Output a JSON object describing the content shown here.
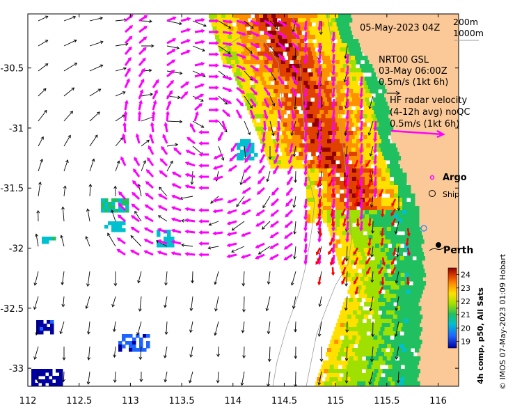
{
  "map": {
    "date_label": "05-May-2023 04Z",
    "contours": [
      "200m",
      "1000m"
    ],
    "model_lines": [
      "NRT00 GSL",
      "03-May 06:00Z",
      "0.5m/s (1kt 6h)"
    ],
    "radar_lines": [
      "HF radar velocity",
      "(4-12h avg) noQC",
      "0.5m/s (1kt 6h)"
    ],
    "legend": {
      "argo": "Argo",
      "ship": "Ship"
    },
    "places": [
      {
        "name": "Perth",
        "lon": 115.86,
        "lat": -31.95
      }
    ],
    "colorbar": {
      "title": "4h comp, p50, All Sats",
      "ticks": [
        19,
        20,
        21,
        22,
        23,
        24
      ],
      "range": [
        18.5,
        24.5
      ]
    },
    "credit": "© IMOS 07-May-2023 01:09 Hobart",
    "lon_ticks": [
      "112",
      "112.5",
      "113",
      "113.5",
      "114",
      "114.5",
      "115",
      "115.5",
      "116"
    ],
    "lat_ticks": [
      "-30.5",
      "-31",
      "-31.5",
      "-32",
      "-32.5",
      "-33"
    ],
    "lon_range": [
      112,
      116.2
    ],
    "lat_range": [
      -33.15,
      -30.05
    ],
    "colors": {
      "land": "#fbc998",
      "radar_arrow": "#ff00ff",
      "argo_arrow": "#ff0000"
    }
  }
}
